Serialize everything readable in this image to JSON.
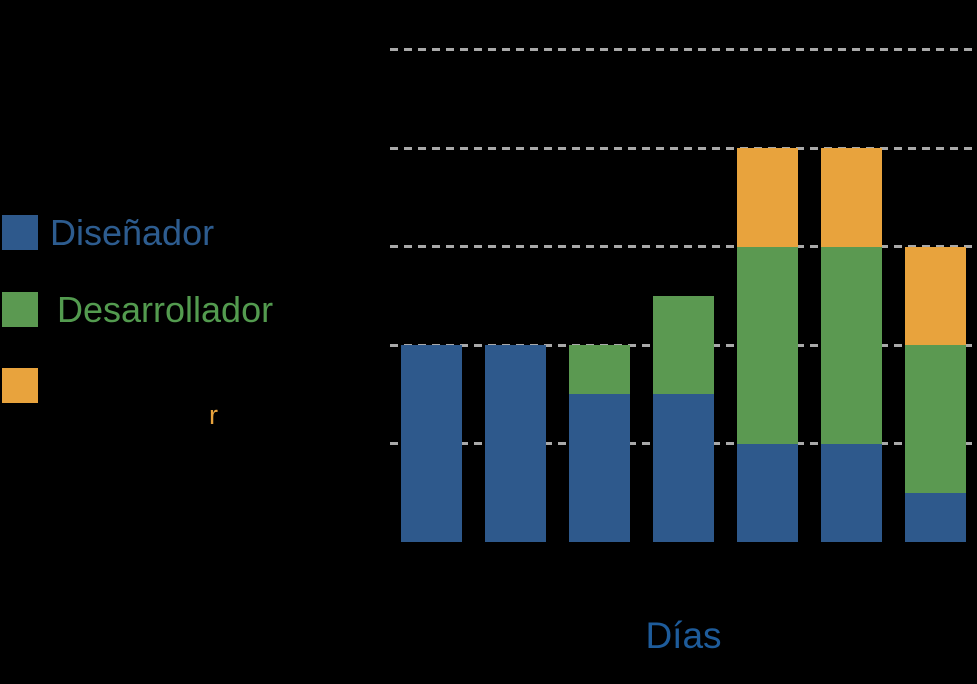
{
  "canvas": {
    "background": "#000000"
  },
  "legend": {
    "items": [
      {
        "label": "Diseñador",
        "swatch_color": "#2E598C",
        "label_color": "#2D5C8F"
      },
      {
        "label": "Desarrollador",
        "swatch_color": "#5B9951",
        "label_color": "#539B4F"
      },
      {
        "label": "",
        "swatch_color": "#E8A33D",
        "label_color": "#E8A33D"
      }
    ],
    "stray_text": {
      "text": "r",
      "color": "#E8A33D"
    }
  },
  "chart_data": {
    "type": "bar",
    "stacked": true,
    "title": "",
    "xlabel": "Días",
    "ylabel": "",
    "ylim": [
      0,
      10
    ],
    "gridline_values": [
      2,
      4,
      6,
      8,
      10
    ],
    "grid_style": "dashed",
    "grid_color": "#A9A9A9",
    "legend_position": "left",
    "category_labels_visible": false,
    "categories": [
      "",
      "",
      "",
      "",
      "",
      "",
      ""
    ],
    "series": [
      {
        "name": "Diseñador",
        "color": "#2E598C",
        "values": [
          4,
          4,
          3,
          3,
          2,
          2,
          1
        ]
      },
      {
        "name": "Desarrollador",
        "color": "#5B9951",
        "values": [
          0,
          0,
          1,
          2,
          4,
          4,
          3
        ]
      },
      {
        "name": "",
        "color": "#E8A33D",
        "values": [
          0,
          0,
          0,
          0,
          2,
          2,
          2
        ]
      }
    ],
    "xlabel_color": "#1E5C9B"
  }
}
